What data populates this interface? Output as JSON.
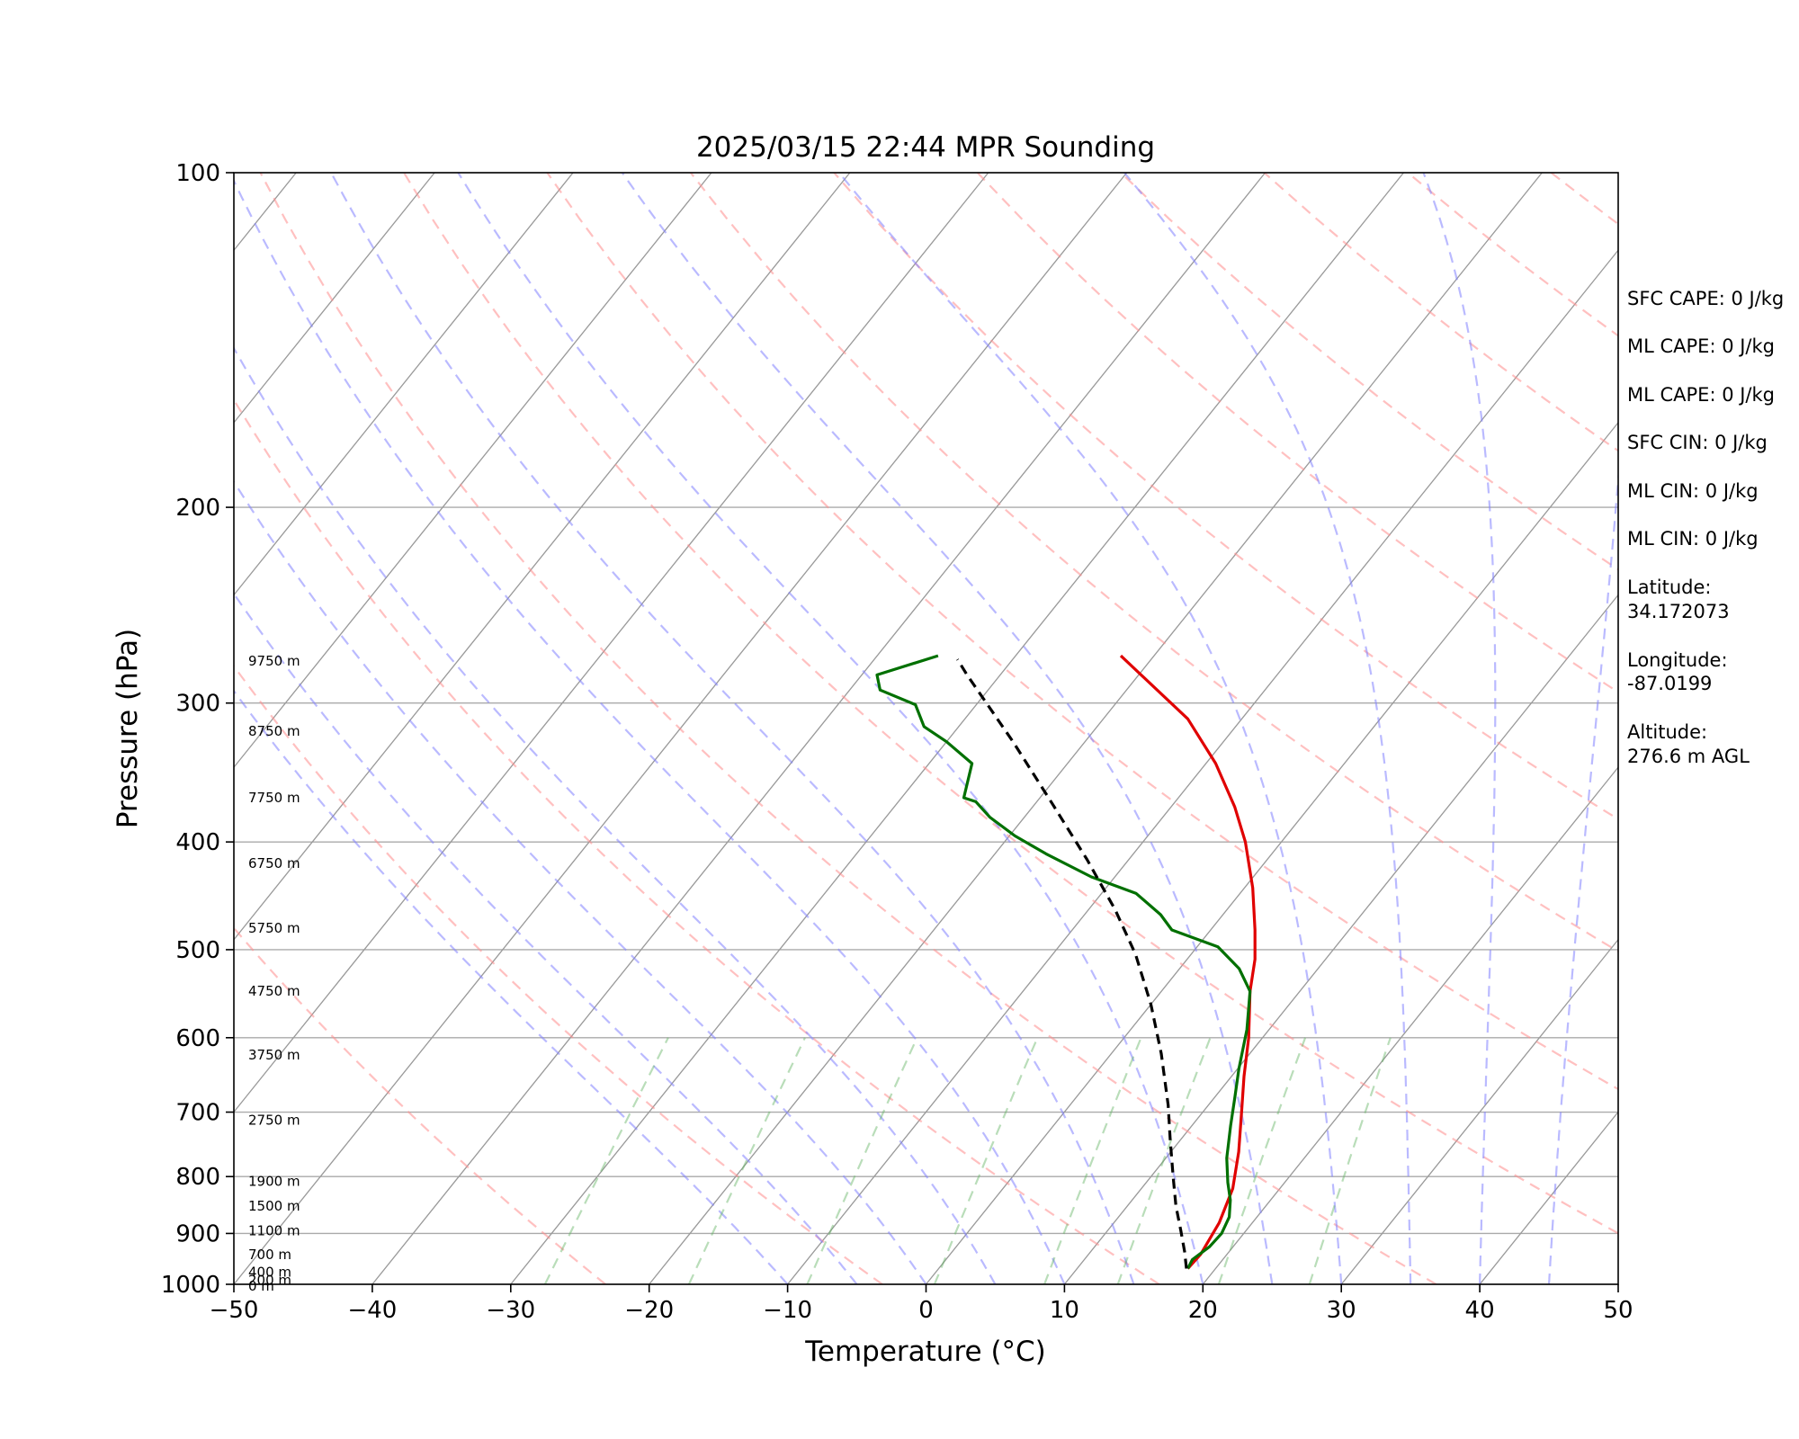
{
  "chart_data": {
    "type": "line",
    "title": "2025/03/15 22:44 MPR Sounding",
    "xlabel": "Temperature (°C)",
    "ylabel": "Pressure (hPa)",
    "xlim": [
      -50,
      50
    ],
    "ylim": [
      1000,
      100
    ],
    "y_scale": "log",
    "grid": true,
    "x_ticks": [
      "−50",
      "−40",
      "−30",
      "−20",
      "−10",
      "0",
      "10",
      "20",
      "30",
      "40",
      "50"
    ],
    "y_ticks": [
      "100",
      "200",
      "300",
      "400",
      "500",
      "600",
      "700",
      "800",
      "900",
      "1000"
    ],
    "height_labels": [
      {
        "p": 275,
        "label": "9750 m"
      },
      {
        "p": 318,
        "label": "8750 m"
      },
      {
        "p": 365,
        "label": "7750 m"
      },
      {
        "p": 418,
        "label": "6750 m"
      },
      {
        "p": 478,
        "label": "5750 m"
      },
      {
        "p": 545,
        "label": "4750 m"
      },
      {
        "p": 622,
        "label": "3750 m"
      },
      {
        "p": 712,
        "label": "2750 m"
      },
      {
        "p": 808,
        "label": "1900 m"
      },
      {
        "p": 850,
        "label": "1500 m"
      },
      {
        "p": 895,
        "label": "1100 m"
      },
      {
        "p": 940,
        "label": "700 m"
      },
      {
        "p": 975,
        "label": "400 m"
      },
      {
        "p": 992,
        "label": "200 m"
      },
      {
        "p": 1004,
        "label": "0 m"
      }
    ],
    "series": [
      {
        "color": "#e00000",
        "points": [
          [
            18.0,
            968
          ],
          [
            18.1,
            940
          ],
          [
            17.6,
            880
          ],
          [
            16.6,
            820
          ],
          [
            14.9,
            760
          ],
          [
            12.8,
            700
          ],
          [
            10.9,
            650
          ],
          [
            9.0,
            600
          ],
          [
            6.4,
            545
          ],
          [
            4.9,
            510
          ],
          [
            3.2,
            480
          ],
          [
            0.6,
            440
          ],
          [
            -2.6,
            400
          ],
          [
            -5.4,
            372
          ],
          [
            -9.3,
            340
          ],
          [
            -13.9,
            310
          ],
          [
            -22.4,
            272
          ]
        ]
      },
      {
        "color": "#007000",
        "points": [
          [
            18.0,
            968
          ],
          [
            17.8,
            950
          ],
          [
            18.3,
            925
          ],
          [
            18.4,
            900
          ],
          [
            18.0,
            870
          ],
          [
            17.1,
            840
          ],
          [
            15.9,
            810
          ],
          [
            14.4,
            770
          ],
          [
            12.8,
            720
          ],
          [
            11.5,
            680
          ],
          [
            10.1,
            640
          ],
          [
            8.4,
            590
          ],
          [
            6.4,
            545
          ],
          [
            4.3,
            520
          ],
          [
            1.5,
            497
          ],
          [
            -2.8,
            480
          ],
          [
            -4.5,
            465
          ],
          [
            -7.5,
            445
          ],
          [
            -11.7,
            430
          ],
          [
            -16.3,
            410
          ],
          [
            -19.6,
            395
          ],
          [
            -22.5,
            380
          ],
          [
            -24.4,
            368
          ],
          [
            -25.5,
            365
          ],
          [
            -26.9,
            340
          ],
          [
            -30.0,
            325
          ],
          [
            -32.5,
            315
          ],
          [
            -34.4,
            301
          ],
          [
            -37.8,
            292
          ],
          [
            -38.9,
            283
          ],
          [
            -35.6,
            272
          ]
        ]
      },
      {
        "color": "#000000",
        "points": [
          [
            17.9,
            968
          ],
          [
            16.8,
            935
          ],
          [
            15.3,
            895
          ],
          [
            13.5,
            850
          ],
          [
            11.6,
            800
          ],
          [
            9.2,
            740
          ],
          [
            7.1,
            690
          ],
          [
            3.6,
            620
          ],
          [
            0.0,
            560
          ],
          [
            -4.0,
            505
          ],
          [
            -8.1,
            460
          ],
          [
            -13.0,
            415
          ],
          [
            -18.7,
            370
          ],
          [
            -25.2,
            325
          ],
          [
            -32.4,
            283
          ],
          [
            -34.0,
            274
          ]
        ]
      }
    ]
  },
  "annotations": [
    "SFC CAPE: 0 J/kg",
    "ML CAPE: 0 J/kg",
    "ML CAPE: 0 J/kg",
    "SFC CIN: 0 J/kg",
    "ML CIN: 0 J/kg",
    "ML CIN: 0 J/kg",
    "Latitude:",
    "34.172073",
    "Longitude:",
    "-87.0199",
    "Altitude:",
    "276.6 m AGL"
  ]
}
